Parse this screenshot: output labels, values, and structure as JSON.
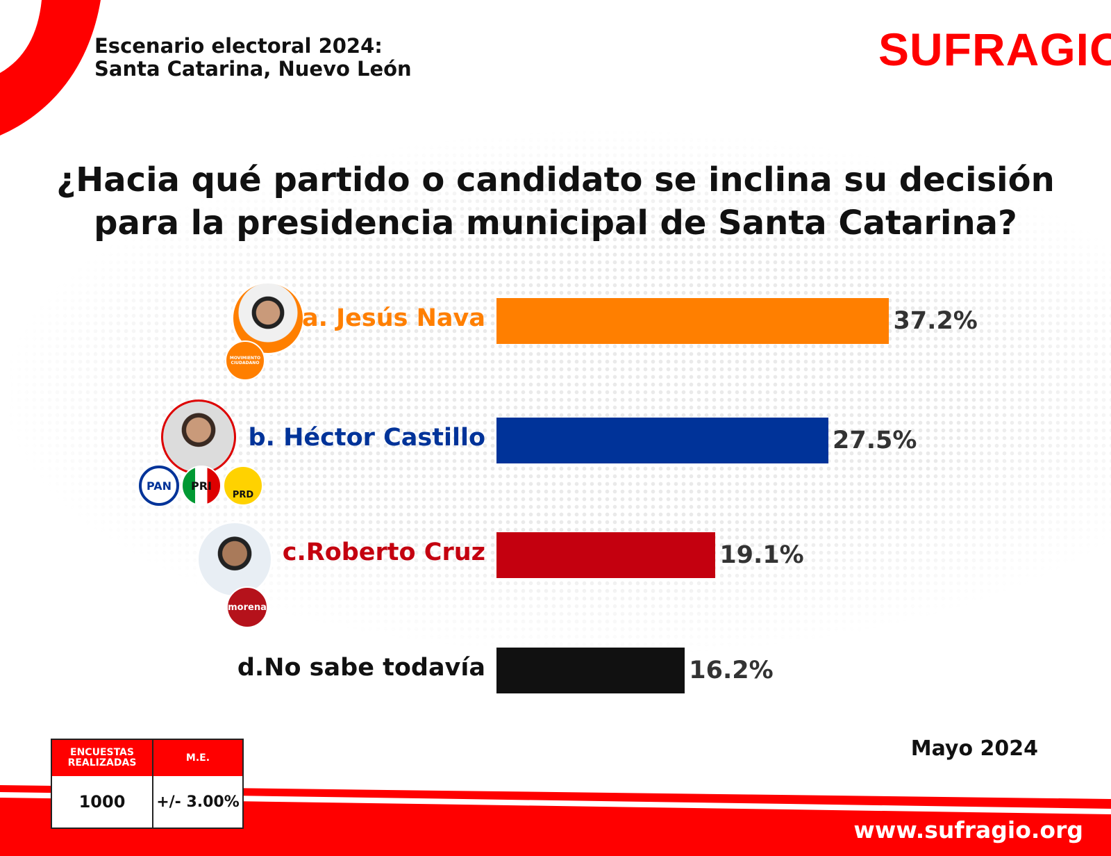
{
  "header": {
    "line1": "Escenario electoral 2024:",
    "line2": "Santa Catarina, Nuevo León"
  },
  "logo": "SUFRAGIO",
  "chart_data": {
    "type": "bar",
    "orientation": "horizontal",
    "title": "¿Hacia qué partido o candidato se inclina su decisión para la presidencia municipal de Santa Catarina?",
    "categories": [
      "a. Jesús Nava",
      "b. Héctor Castillo",
      "c.Roberto Cruz",
      "d.No sabe todavía"
    ],
    "values": [
      37.2,
      27.5,
      19.1,
      16.2
    ],
    "value_labels": [
      "37.2%",
      "27.5%",
      "19.1%",
      "16.2%"
    ],
    "colors": [
      "#ff7f00",
      "#003399",
      "#c4000f",
      "#111111"
    ],
    "label_colors": [
      "#ff7f00",
      "#003399",
      "#c4000f",
      "#111111"
    ],
    "unit": "%"
  },
  "title_line1": "¿Hacia qué partido o candidato se inclina su decisión",
  "title_line2": "para la presidencia municipal de Santa Catarina?",
  "parties": {
    "mc": "MOVIMIENTO CIUDADANO",
    "pan": "PAN",
    "pri": "PRI",
    "prd": "PRD",
    "morena": "morena"
  },
  "table": {
    "col1_header": "ENCUESTAS REALIZADAS",
    "col2_header": "M.E.",
    "col1_value": "1000",
    "col2_value": "+/- 3.00%"
  },
  "date": "Mayo 2024",
  "url": "www.sufragio.org"
}
